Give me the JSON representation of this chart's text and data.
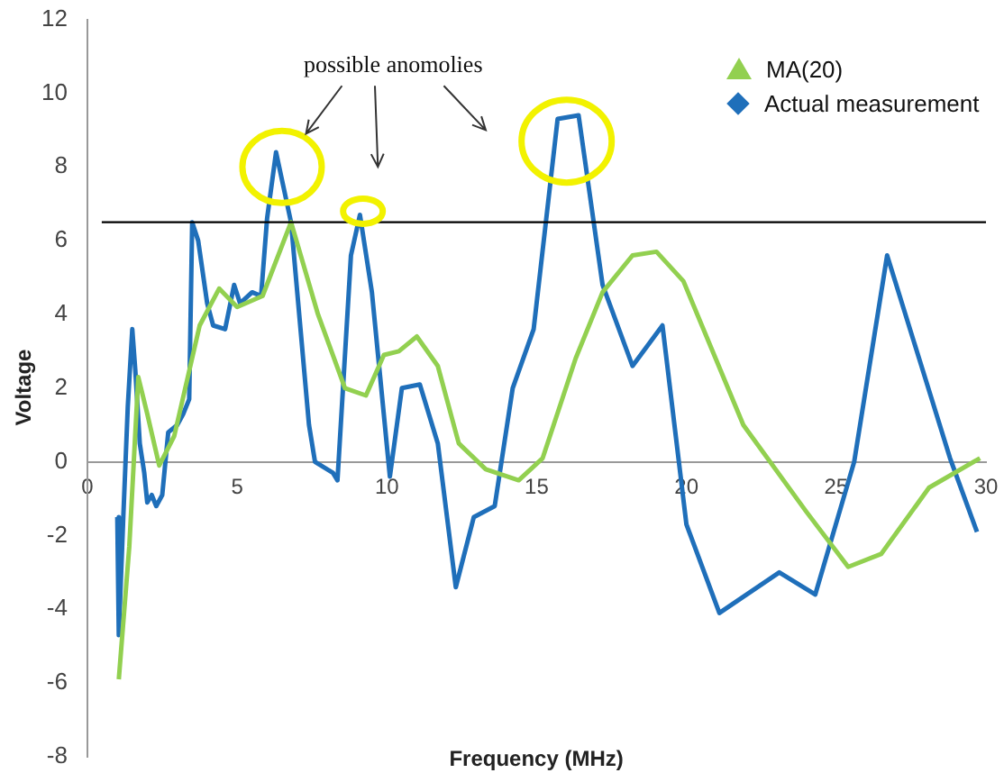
{
  "chart_data": {
    "type": "line",
    "xlabel": "Frequency (MHz)",
    "ylabel": "Voltage",
    "annotations": [
      "possible anomolies"
    ],
    "xlim": [
      0,
      30
    ],
    "xticks": [
      0,
      5,
      10,
      15,
      20,
      25,
      30
    ],
    "ylim": [
      -8,
      12
    ],
    "yticks": [
      -8,
      -6,
      -4,
      -2,
      0,
      2,
      4,
      6,
      8,
      10,
      12
    ],
    "grid": false,
    "legend": "top right",
    "ref_lines": [
      {
        "axis": "y",
        "value": 6.5,
        "color": "#000000"
      }
    ],
    "series": [
      {
        "name": "MA(20)",
        "color": "#92d050",
        "x": [
          1.05,
          1.4,
          1.7,
          2.0,
          2.4,
          2.9,
          3.75,
          4.4,
          5.0,
          5.85,
          6.8,
          7.7,
          8.6,
          9.3,
          9.9,
          10.4,
          11.0,
          11.7,
          12.4,
          13.3,
          14.4,
          15.2,
          16.3,
          17.2,
          18.2,
          19.0,
          19.9,
          21.9,
          24.0,
          25.4,
          26.5,
          28.1,
          29.8
        ],
        "values": [
          -5.9,
          -2.3,
          2.3,
          1.3,
          -0.1,
          0.7,
          3.7,
          4.7,
          4.2,
          4.5,
          6.5,
          4.0,
          2.0,
          1.8,
          2.9,
          3.0,
          3.4,
          2.6,
          0.5,
          -0.2,
          -0.5,
          0.1,
          2.8,
          4.6,
          5.6,
          5.7,
          4.9,
          1.0,
          -1.35,
          -2.85,
          -2.5,
          -0.7,
          0.1
        ]
      },
      {
        "name": "Actual measurement",
        "color": "#1f6fba",
        "x": [
          1.0,
          1.05,
          1.2,
          1.35,
          1.5,
          1.6,
          1.75,
          1.9,
          2.0,
          2.15,
          2.3,
          2.5,
          2.7,
          3.0,
          3.2,
          3.4,
          3.5,
          3.7,
          4.0,
          4.2,
          4.6,
          4.9,
          5.1,
          5.5,
          5.8,
          6.0,
          6.3,
          6.8,
          7.4,
          7.6,
          8.2,
          8.35,
          8.8,
          9.1,
          9.5,
          10.1,
          10.5,
          11.1,
          11.7,
          12.3,
          12.9,
          13.6,
          14.2,
          14.9,
          15.7,
          16.4,
          17.2,
          18.2,
          19.2,
          20.0,
          21.1,
          23.1,
          24.3,
          25.6,
          26.7,
          28.8,
          29.7
        ],
        "values": [
          -1.5,
          -4.7,
          -1.5,
          1.5,
          3.6,
          2.5,
          0.5,
          -0.3,
          -1.1,
          -0.9,
          -1.2,
          -0.9,
          0.8,
          1.0,
          1.3,
          1.7,
          6.5,
          6.0,
          4.3,
          3.7,
          3.6,
          4.8,
          4.3,
          4.6,
          4.5,
          6.6,
          8.4,
          6.5,
          1.0,
          0.0,
          -0.3,
          -0.5,
          5.6,
          6.7,
          4.6,
          -0.4,
          2.0,
          2.1,
          0.5,
          -3.4,
          -1.5,
          -1.2,
          2.0,
          3.6,
          9.3,
          9.4,
          4.8,
          2.6,
          3.7,
          -1.7,
          -4.1,
          -3.0,
          -3.6,
          0.0,
          5.6,
          0.1,
          -1.9
        ]
      }
    ]
  }
}
